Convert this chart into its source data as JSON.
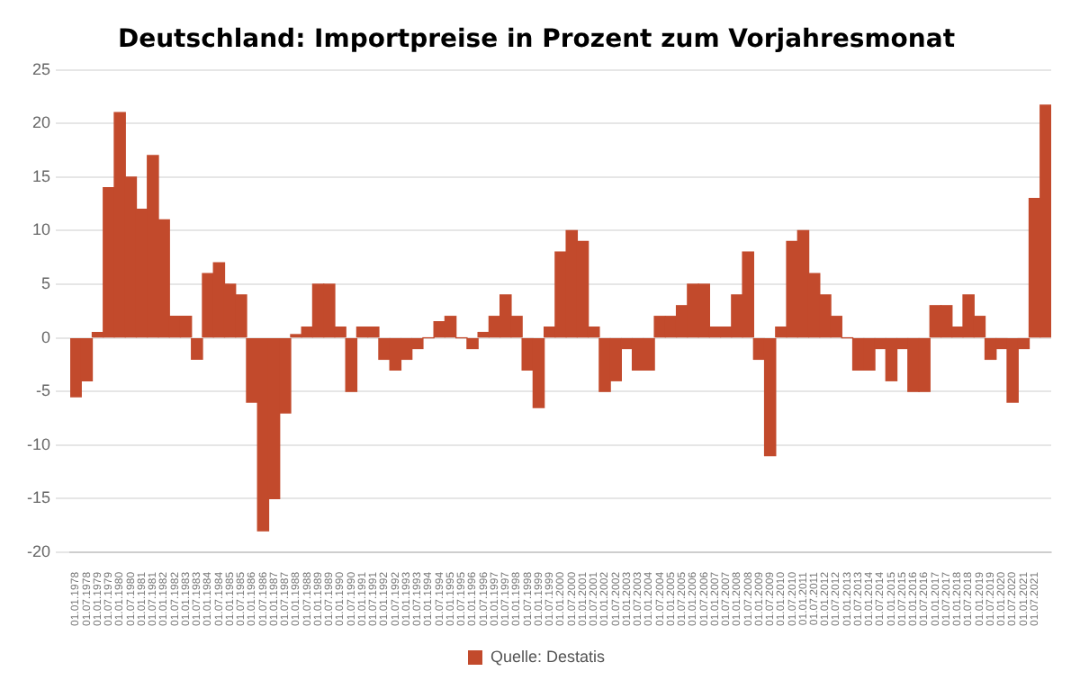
{
  "chart_data": {
    "type": "bar",
    "title": "Deutschland: Importpreise in Prozent zum Vorjahresmonat",
    "categories": [
      "01.01.1978",
      "01.07.1978",
      "01.01.1979",
      "01.07.1979",
      "01.01.1980",
      "01.07.1980",
      "01.01.1981",
      "01.07.1981",
      "01.01.1982",
      "01.07.1982",
      "01.01.1983",
      "01.07.1983",
      "01.01.1984",
      "01.07.1984",
      "01.01.1985",
      "01.07.1985",
      "01.01.1986",
      "01.07.1986",
      "01.01.1987",
      "01.07.1987",
      "01.01.1988",
      "01.07.1988",
      "01.01.1989",
      "01.07.1989",
      "01.01.1990",
      "01.07.1990",
      "01.01.1991",
      "01.07.1991",
      "01.01.1992",
      "01.07.1992",
      "01.01.1993",
      "01.07.1993",
      "01.01.1994",
      "01.07.1994",
      "01.01.1995",
      "01.07.1995",
      "01.01.1996",
      "01.07.1996",
      "01.01.1997",
      "01.07.1997",
      "01.01.1998",
      "01.07.1998",
      "01.01.1999",
      "01.07.1999",
      "01.01.2000",
      "01.07.2000",
      "01.01.2001",
      "01.07.2001",
      "01.01.2002",
      "01.07.2002",
      "01.01.2003",
      "01.07.2003",
      "01.01.2004",
      "01.07.2004",
      "01.01.2005",
      "01.07.2005",
      "01.01.2006",
      "01.07.2006",
      "01.01.2007",
      "01.07.2007",
      "01.01.2008",
      "01.07.2008",
      "01.01.2009",
      "01.07.2009",
      "01.01.2010",
      "01.07.2010",
      "01.01.2011",
      "01.07.2011",
      "01.01.2012",
      "01.07.2012",
      "01.01.2013",
      "01.07.2013",
      "01.01.2014",
      "01.07.2014",
      "01.01.2015",
      "01.07.2015",
      "01.01.2016",
      "01.07.2016",
      "01.01.2017",
      "01.07.2017",
      "01.01.2018",
      "01.07.2018",
      "01.01.2019",
      "01.07.2019",
      "01.01.2020",
      "01.07.2020",
      "01.01.2021",
      "01.07.2021",
      null
    ],
    "series": [
      {
        "name": "Quelle: Destatis",
        "color": "#c24a2c",
        "values": [
          -5.5,
          -4,
          0.5,
          14,
          21,
          15,
          12,
          17,
          11,
          2,
          2,
          -2,
          6,
          7,
          5,
          4,
          -6,
          -18,
          -15,
          -7,
          0.3,
          1,
          5,
          5,
          1,
          -5,
          1,
          1,
          -2,
          -3,
          -2,
          -1,
          0,
          1.5,
          2,
          0,
          -1,
          0.5,
          2,
          4,
          2,
          -3,
          -6.5,
          1,
          8,
          10,
          9,
          1,
          -5,
          -4,
          -1,
          -3,
          -3,
          2,
          2,
          3,
          5,
          5,
          1,
          1,
          4,
          8,
          -2,
          -11,
          1,
          9,
          10,
          6,
          4,
          2,
          0,
          -3,
          -3,
          -1,
          -4,
          -1,
          -5,
          -5,
          3,
          3,
          1,
          4,
          2,
          -2,
          -1,
          -6,
          -1,
          13,
          21.7
        ]
      }
    ],
    "ylim": [
      -20,
      25
    ],
    "yticks": [
      -20,
      -15,
      -10,
      -5,
      0,
      5,
      10,
      15,
      20,
      25
    ],
    "grid": "y",
    "legend": "bottom"
  }
}
